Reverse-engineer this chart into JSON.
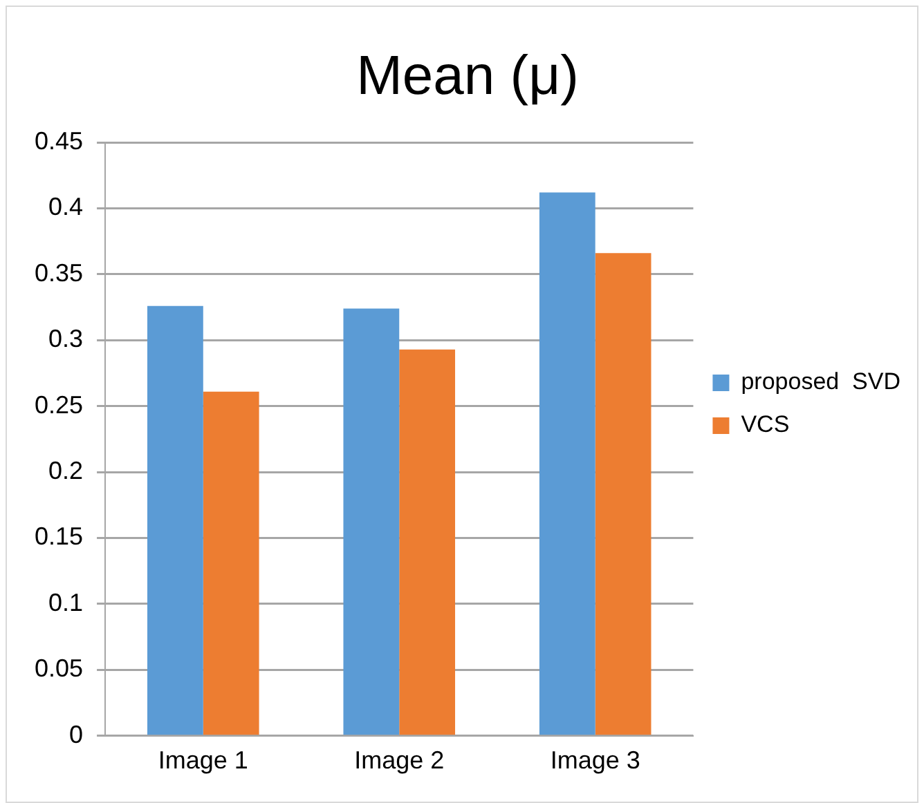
{
  "chart_data": {
    "type": "bar",
    "title": "Mean (μ)",
    "categories": [
      "Image 1",
      "Image 2",
      "Image 3"
    ],
    "series": [
      {
        "name": "proposed  SVD",
        "color": "#5b9bd5",
        "values": [
          0.326,
          0.324,
          0.412
        ]
      },
      {
        "name": "VCS",
        "color": "#ed7d31",
        "values": [
          0.261,
          0.293,
          0.366
        ]
      }
    ],
    "ylim": [
      0,
      0.45
    ],
    "yticks": [
      0,
      0.05,
      0.1,
      0.15,
      0.2,
      0.25,
      0.3,
      0.35,
      0.4,
      0.45
    ],
    "grid": "y",
    "legend": "right"
  }
}
